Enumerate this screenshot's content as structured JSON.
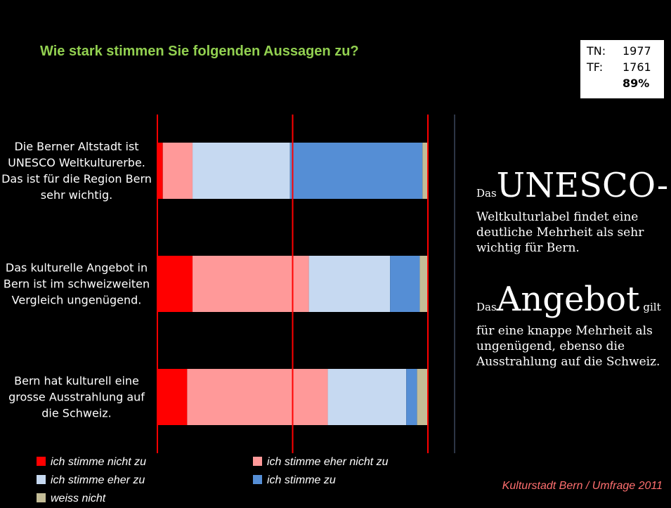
{
  "chart_data": {
    "type": "stacked_barh",
    "title": "Wie stark stimmen Sie folgenden Aussagen zu?",
    "categories": [
      "Die Berner Altstadt ist UNESCO Weltkulturerbe. Das ist für die Region Bern sehr wichtig.",
      "Das kulturelle Angebot in Bern ist im schweizweiten Vergleich ungenügend.",
      "Bern hat kulturell eine grosse Ausstrahlung auf die Schweiz."
    ],
    "series": [
      {
        "name": "ich stimme nicht zu",
        "color": "#ff0000",
        "values": [
          2,
          13,
          11
        ]
      },
      {
        "name": "ich stimme eher nicht zu",
        "color": "#ff9999",
        "values": [
          11,
          43,
          52
        ]
      },
      {
        "name": "ich stimme eher zu",
        "color": "#c6d9f1",
        "values": [
          36,
          30,
          29
        ]
      },
      {
        "name": "ich stimme zu",
        "color": "#558ed5",
        "values": [
          49,
          11,
          4
        ]
      },
      {
        "name": "weiss nicht",
        "color": "#c4bd97",
        "values": [
          2,
          3,
          4
        ]
      }
    ],
    "xlim": [
      0,
      100
    ],
    "xticks": [
      0,
      50,
      100
    ],
    "grid": true,
    "grid_color": "#ff0000"
  },
  "info_box": {
    "rows": [
      [
        "TN:",
        "1977"
      ],
      [
        "TF:",
        "1761"
      ],
      [
        "",
        "89%"
      ]
    ]
  },
  "annotations": [
    {
      "small": "Das",
      "big": "UNESCO-",
      "text": "Weltkulturlabel findet eine deutliche Mehrheit als sehr wichtig für Bern."
    },
    {
      "small": "Das",
      "big": "Angebot",
      "tail": "gilt",
      "text": "für eine knappe Mehrheit als ungenügend, ebenso die Ausstrahlung auf die Schweiz."
    }
  ],
  "source": "Kulturstadt Bern / Umfrage 2011"
}
